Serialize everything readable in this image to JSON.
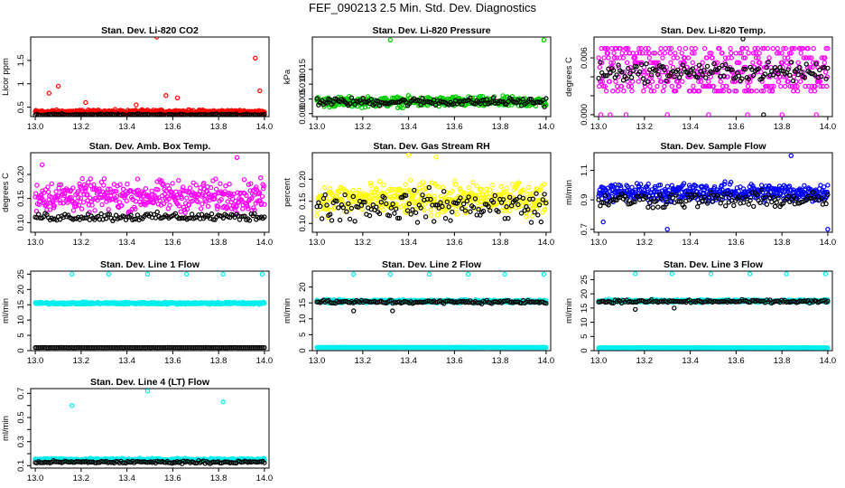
{
  "figure_title": "FEF_090213  2.5 Min. Std. Dev. Diagnostics",
  "chart_data": [
    {
      "type": "scatter",
      "title": "Stan. Dev. Li-820 CO2",
      "ylabel": "Licor ppm",
      "xlim": [
        12.98,
        14.02
      ],
      "ylim": [
        0.3,
        2.0
      ],
      "x_ticks": [
        13.0,
        13.2,
        13.4,
        13.6,
        13.8,
        14.0
      ],
      "x_tick_labels": [
        "13.0",
        "13.2",
        "13.4",
        "13.6",
        "13.8",
        "14.0"
      ],
      "y_ticks": [
        0.5,
        1.0,
        1.5
      ],
      "y_tick_labels": [
        "0.5",
        "1",
        "1.5"
      ],
      "series": [
        {
          "name": "primary",
          "color": "#ff0000",
          "base": 0.4,
          "spread": 0.06,
          "spikes": [
            [
              13.06,
              0.8
            ],
            [
              13.1,
              0.95
            ],
            [
              13.22,
              0.6
            ],
            [
              13.44,
              0.55
            ],
            [
              13.53,
              2.0
            ],
            [
              13.57,
              0.75
            ],
            [
              13.62,
              0.7
            ],
            [
              13.96,
              1.55
            ],
            [
              13.98,
              0.85
            ]
          ]
        },
        {
          "name": "secondary",
          "color": "#000000",
          "base": 0.34,
          "spread": 0.03,
          "spikes": []
        }
      ]
    },
    {
      "type": "scatter",
      "title": "Stan. Dev. Li-820 Pressure",
      "ylabel": "kPa",
      "xlim": [
        12.98,
        14.02
      ],
      "ylim": [
        -0.001,
        0.026
      ],
      "x_ticks": [
        13.0,
        13.2,
        13.4,
        13.6,
        13.8,
        14.0
      ],
      "x_tick_labels": [
        "13.0",
        "13.2",
        "13.4",
        "13.6",
        "13.8",
        "14.0"
      ],
      "y_ticks": [
        0.0,
        0.005,
        0.01,
        0.015
      ],
      "y_tick_labels": [
        "0.000",
        "0.005",
        "0.010",
        "0.015"
      ],
      "series": [
        {
          "name": "primary",
          "color": "#00cc00",
          "base": 0.004,
          "spread": 0.0025,
          "spikes": [
            [
              13.32,
              0.025
            ],
            [
              13.99,
              0.025
            ]
          ]
        },
        {
          "name": "secondary",
          "color": "#000000",
          "base": 0.004,
          "spread": 0.002,
          "spikes": []
        }
      ]
    },
    {
      "type": "scatter",
      "title": "Stan. Dev. Li-820 Temp.",
      "ylabel": "degrees C",
      "xlim": [
        12.98,
        14.02
      ],
      "ylim": [
        -0.0002,
        0.0082
      ],
      "x_ticks": [
        13.0,
        13.2,
        13.4,
        13.6,
        13.8,
        14.0
      ],
      "x_tick_labels": [
        "13.0",
        "13.2",
        "13.4",
        "13.6",
        "13.8",
        "14.0"
      ],
      "y_ticks": [
        0.0,
        0.002,
        0.004,
        0.006
      ],
      "y_tick_labels": [
        "0.000",
        "",
        "",
        "0.006"
      ],
      "series": [
        {
          "name": "primary",
          "color": "#ff00ff",
          "base": 0.0045,
          "spread": 0.0016,
          "spikes": [
            [
              13.01,
              0.0
            ],
            [
              13.05,
              0.0
            ],
            [
              13.12,
              0.0
            ],
            [
              13.3,
              0.0
            ],
            [
              13.48,
              0.0
            ],
            [
              13.65,
              0.0
            ],
            [
              13.8,
              0.0
            ],
            [
              13.95,
              0.0
            ]
          ]
        },
        {
          "name": "secondary",
          "color": "#000000",
          "base": 0.0045,
          "spread": 0.0014,
          "spikes": [
            [
              13.63,
              0.008
            ],
            [
              13.72,
              0.0
            ]
          ]
        }
      ]
    },
    {
      "type": "scatter",
      "title": "Stan. Dev. Amb. Box Temp.",
      "ylabel": "degrees C",
      "xlim": [
        12.98,
        14.02
      ],
      "ylim": [
        0.08,
        0.245
      ],
      "x_ticks": [
        13.0,
        13.2,
        13.4,
        13.6,
        13.8,
        14.0
      ],
      "x_tick_labels": [
        "13.0",
        "13.2",
        "13.4",
        "13.6",
        "13.8",
        "14.0"
      ],
      "y_ticks": [
        0.1,
        0.15,
        0.2
      ],
      "y_tick_labels": [
        "0.10",
        "0.15",
        "0.20"
      ],
      "series": [
        {
          "name": "primary",
          "color": "#ff00ff",
          "base": 0.155,
          "spread": 0.045,
          "spikes": [
            [
              13.03,
              0.22
            ],
            [
              13.88,
              0.235
            ]
          ]
        },
        {
          "name": "secondary",
          "color": "#000000",
          "base": 0.112,
          "spread": 0.012,
          "spikes": []
        }
      ]
    },
    {
      "type": "scatter",
      "title": "Stan. Dev. Gas Stream RH",
      "ylabel": "percent",
      "xlim": [
        12.98,
        14.02
      ],
      "ylim": [
        0.08,
        0.26
      ],
      "x_ticks": [
        13.0,
        13.2,
        13.4,
        13.6,
        13.8,
        14.0
      ],
      "x_tick_labels": [
        "13.0",
        "13.2",
        "13.4",
        "13.6",
        "13.8",
        "14.0"
      ],
      "y_ticks": [
        0.1,
        0.15,
        0.2
      ],
      "y_tick_labels": [
        "0.10",
        "0.15",
        "0.20"
      ],
      "series": [
        {
          "name": "primary",
          "color": "#ffff00",
          "base": 0.155,
          "spread": 0.05,
          "spikes": [
            [
              13.4,
              0.255
            ],
            [
              13.52,
              0.25
            ]
          ]
        },
        {
          "name": "secondary",
          "color": "#000000",
          "base": 0.14,
          "spread": 0.05,
          "spikes": []
        }
      ]
    },
    {
      "type": "scatter",
      "title": "Stan. Dev. Sample Flow",
      "ylabel": "ml/min",
      "xlim": [
        12.98,
        14.02
      ],
      "ylim": [
        0.68,
        1.22
      ],
      "x_ticks": [
        13.0,
        13.2,
        13.4,
        13.6,
        13.8,
        14.0
      ],
      "x_tick_labels": [
        "13.0",
        "13.2",
        "13.4",
        "13.6",
        "13.8",
        "14.0"
      ],
      "y_ticks": [
        0.7,
        0.9,
        1.1
      ],
      "y_tick_labels": [
        "0.7",
        "0.9",
        "1.1"
      ],
      "series": [
        {
          "name": "primary",
          "color": "#0000ff",
          "base": 0.95,
          "spread": 0.09,
          "spikes": [
            [
              13.02,
              0.75
            ],
            [
              13.3,
              0.7
            ],
            [
              13.84,
              1.2
            ],
            [
              14.0,
              0.7
            ]
          ]
        },
        {
          "name": "secondary",
          "color": "#000000",
          "base": 0.9,
          "spread": 0.08,
          "spikes": []
        }
      ]
    },
    {
      "type": "scatter",
      "title": "Stan. Dev. Line 1 Flow",
      "ylabel": "ml/min",
      "xlim": [
        12.98,
        14.02
      ],
      "ylim": [
        0,
        26
      ],
      "x_ticks": [
        13.0,
        13.2,
        13.4,
        13.6,
        13.8,
        14.0
      ],
      "x_tick_labels": [
        "13.0",
        "13.2",
        "13.4",
        "13.6",
        "13.8",
        "14.0"
      ],
      "y_ticks": [
        0,
        5,
        10,
        15,
        20,
        25
      ],
      "y_tick_labels": [
        "0",
        "5",
        "10",
        "15",
        "20",
        "25"
      ],
      "series": [
        {
          "name": "primary",
          "color": "#00eeee",
          "base": 15.5,
          "spread": 0.5,
          "spikes": [
            [
              13.16,
              25
            ],
            [
              13.32,
              25
            ],
            [
              13.49,
              25
            ],
            [
              13.66,
              25
            ],
            [
              13.82,
              25
            ],
            [
              13.99,
              25
            ]
          ]
        },
        {
          "name": "secondary",
          "color": "#000000",
          "base": 1.0,
          "spread": 0.05,
          "spikes": []
        }
      ]
    },
    {
      "type": "scatter",
      "title": "Stan. Dev. Line 2 Flow",
      "ylabel": "ml/min",
      "xlim": [
        12.98,
        14.02
      ],
      "ylim": [
        0,
        25
      ],
      "x_ticks": [
        13.0,
        13.2,
        13.4,
        13.6,
        13.8,
        14.0
      ],
      "x_tick_labels": [
        "13.0",
        "13.2",
        "13.4",
        "13.6",
        "13.8",
        "14.0"
      ],
      "y_ticks": [
        0,
        5,
        10,
        15,
        20
      ],
      "y_tick_labels": [
        "0",
        "5",
        "10",
        "15",
        "20"
      ],
      "series": [
        {
          "name": "primary",
          "color": "#00eeee",
          "base": 15.5,
          "spread": 0.7,
          "spikes": [
            [
              13.16,
              24
            ],
            [
              13.32,
              24
            ],
            [
              13.49,
              24
            ],
            [
              13.66,
              24
            ],
            [
              13.82,
              24
            ],
            [
              13.99,
              24
            ]
          ]
        },
        {
          "name": "tertiary",
          "color": "#00eeee",
          "base": 1.0,
          "spread": 0.03,
          "spikes": []
        },
        {
          "name": "secondary",
          "color": "#000000",
          "base": 15.3,
          "spread": 0.8,
          "spikes": [
            [
              13.16,
              12.5
            ],
            [
              13.33,
              12.5
            ]
          ]
        }
      ]
    },
    {
      "type": "scatter",
      "title": "Stan. Dev. Line 3 Flow",
      "ylabel": "ml/min",
      "xlim": [
        12.98,
        14.02
      ],
      "ylim": [
        0,
        28
      ],
      "x_ticks": [
        13.0,
        13.2,
        13.4,
        13.6,
        13.8,
        14.0
      ],
      "x_tick_labels": [
        "13.0",
        "13.2",
        "13.4",
        "13.6",
        "13.8",
        "14.0"
      ],
      "y_ticks": [
        0,
        5,
        10,
        15,
        20,
        25
      ],
      "y_tick_labels": [
        "0",
        "5",
        "10",
        "15",
        "20",
        "25"
      ],
      "series": [
        {
          "name": "primary",
          "color": "#00eeee",
          "base": 17.5,
          "spread": 0.7,
          "spikes": [
            [
              13.16,
              27
            ],
            [
              13.32,
              27
            ],
            [
              13.49,
              27
            ],
            [
              13.66,
              27
            ],
            [
              13.82,
              27
            ],
            [
              13.99,
              27
            ]
          ]
        },
        {
          "name": "tertiary",
          "color": "#00eeee",
          "base": 1.0,
          "spread": 0.03,
          "spikes": []
        },
        {
          "name": "secondary",
          "color": "#000000",
          "base": 17.3,
          "spread": 0.8,
          "spikes": [
            [
              13.16,
              14.5
            ],
            [
              13.33,
              15
            ]
          ]
        }
      ]
    },
    {
      "type": "scatter",
      "title": "Stan. Dev. Line 4 (LT) Flow",
      "ylabel": "ml/min",
      "xlim": [
        12.98,
        14.02
      ],
      "ylim": [
        0.08,
        0.74
      ],
      "x_ticks": [
        13.0,
        13.2,
        13.4,
        13.6,
        13.8,
        14.0
      ],
      "x_tick_labels": [
        "13.0",
        "13.2",
        "13.4",
        "13.6",
        "13.8",
        "14.0"
      ],
      "y_ticks": [
        0.1,
        0.2,
        0.3,
        0.4,
        0.5,
        0.6,
        0.7
      ],
      "y_tick_labels": [
        "0.1",
        "",
        "0.3",
        "",
        "0.5",
        "",
        "0.7"
      ],
      "series": [
        {
          "name": "primary",
          "color": "#00eeee",
          "base": 0.15,
          "spread": 0.015,
          "spikes": [
            [
              13.16,
              0.6
            ],
            [
              13.49,
              0.72
            ],
            [
              13.82,
              0.63
            ]
          ]
        },
        {
          "name": "secondary",
          "color": "#000000",
          "base": 0.13,
          "spread": 0.015,
          "spikes": []
        }
      ]
    }
  ]
}
